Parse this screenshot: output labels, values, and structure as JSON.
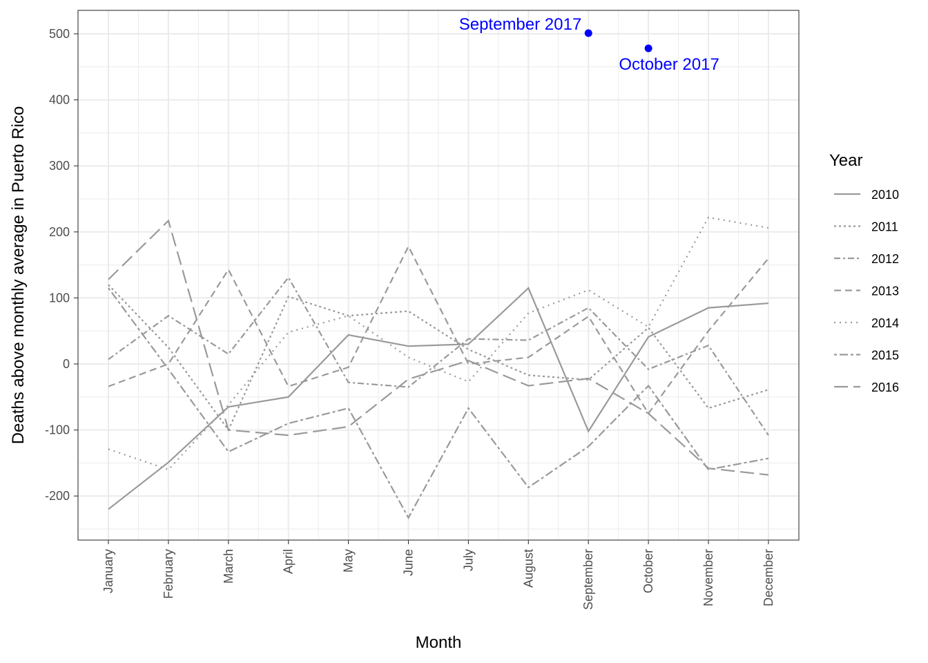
{
  "chart_data": {
    "type": "line",
    "xlabel": "Month",
    "ylabel": "Deaths above monthly average in Puerto Rico",
    "categories": [
      "January",
      "February",
      "March",
      "April",
      "May",
      "June",
      "July",
      "August",
      "September",
      "October",
      "November",
      "December"
    ],
    "ylim": [
      -265,
      518
    ],
    "yticks": [
      -200,
      -100,
      0,
      100,
      200,
      300,
      400,
      500
    ],
    "ytick_labels": [
      "-200",
      "-100",
      "0",
      "100",
      "200",
      "300",
      "400",
      "500"
    ],
    "grid": true,
    "legend": {
      "title": "Year",
      "position": "right"
    },
    "series_color": "#999999",
    "series": [
      {
        "name": "2010",
        "dash": "solid",
        "values": [
          -220,
          -149,
          -65,
          -50,
          44,
          27,
          30,
          115,
          -102,
          41,
          85,
          92
        ]
      },
      {
        "name": "2011",
        "dash": "dot",
        "values": [
          120,
          25,
          -100,
          102,
          73,
          80,
          22,
          -17,
          -24,
          55,
          -67,
          -39
        ]
      },
      {
        "name": "2012",
        "dash": "dashdot",
        "values": [
          7,
          73,
          15,
          131,
          -28,
          -35,
          38,
          36,
          85,
          -8,
          28,
          -108
        ]
      },
      {
        "name": "2013",
        "dash": "dash",
        "values": [
          -34,
          0,
          143,
          -34,
          -5,
          178,
          0,
          10,
          72,
          -75,
          50,
          160
        ]
      },
      {
        "name": "2014",
        "dash": "dotted",
        "values": [
          -129,
          -160,
          -62,
          48,
          73,
          10,
          -27,
          77,
          112,
          56,
          222,
          206
        ]
      },
      {
        "name": "2015",
        "dash": "twodash",
        "values": [
          115,
          -8,
          -133,
          -90,
          -67,
          -233,
          -67,
          -187,
          -125,
          -33,
          -160,
          -143
        ]
      },
      {
        "name": "2016",
        "dash": "longdash",
        "values": [
          128,
          217,
          -100,
          -108,
          -95,
          -23,
          5,
          -33,
          -22,
          -75,
          -158,
          -168
        ]
      }
    ],
    "highlights": [
      {
        "label": "September 2017",
        "month": "September",
        "value": 501
      },
      {
        "label": "October 2017",
        "month": "October",
        "value": 478
      }
    ],
    "highlight_color": "#0000ff"
  }
}
